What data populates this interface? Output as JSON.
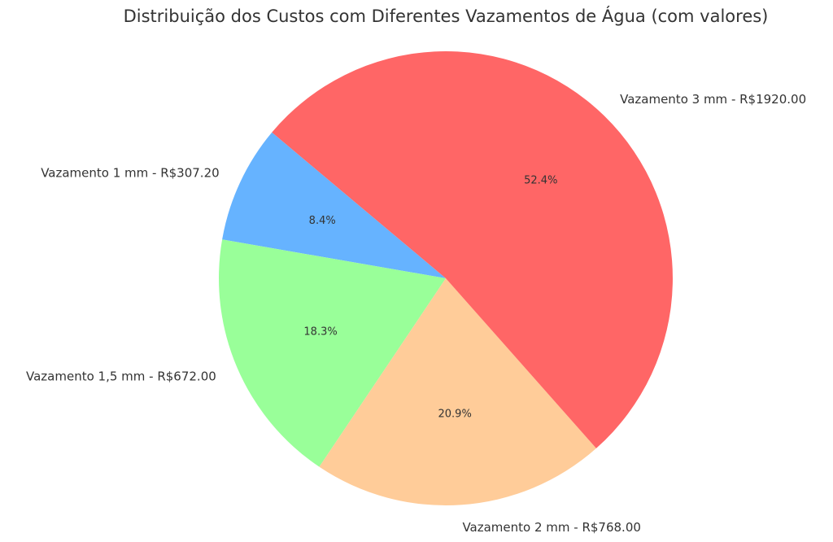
{
  "chart_data": {
    "type": "pie",
    "title": "Distribuição dos Custos com Diferentes Vazamentos de Água (com valores)",
    "start_angle_deg": 140,
    "direction": "counterclockwise",
    "slices": [
      {
        "label": "Vazamento 1 mm - R$307.20",
        "value": 307.2,
        "percent_label": "8.4%",
        "color": "#66b3ff"
      },
      {
        "label": "Vazamento 1,5 mm - R$672.00",
        "value": 672.0,
        "percent_label": "18.3%",
        "color": "#99ff99"
      },
      {
        "label": "Vazamento 2 mm - R$768.00",
        "value": 768.0,
        "percent_label": "20.9%",
        "color": "#ffcc99"
      },
      {
        "label": "Vazamento 3 mm - R$1920.00",
        "value": 1920.0,
        "percent_label": "52.4%",
        "color": "#ff6666"
      }
    ]
  }
}
